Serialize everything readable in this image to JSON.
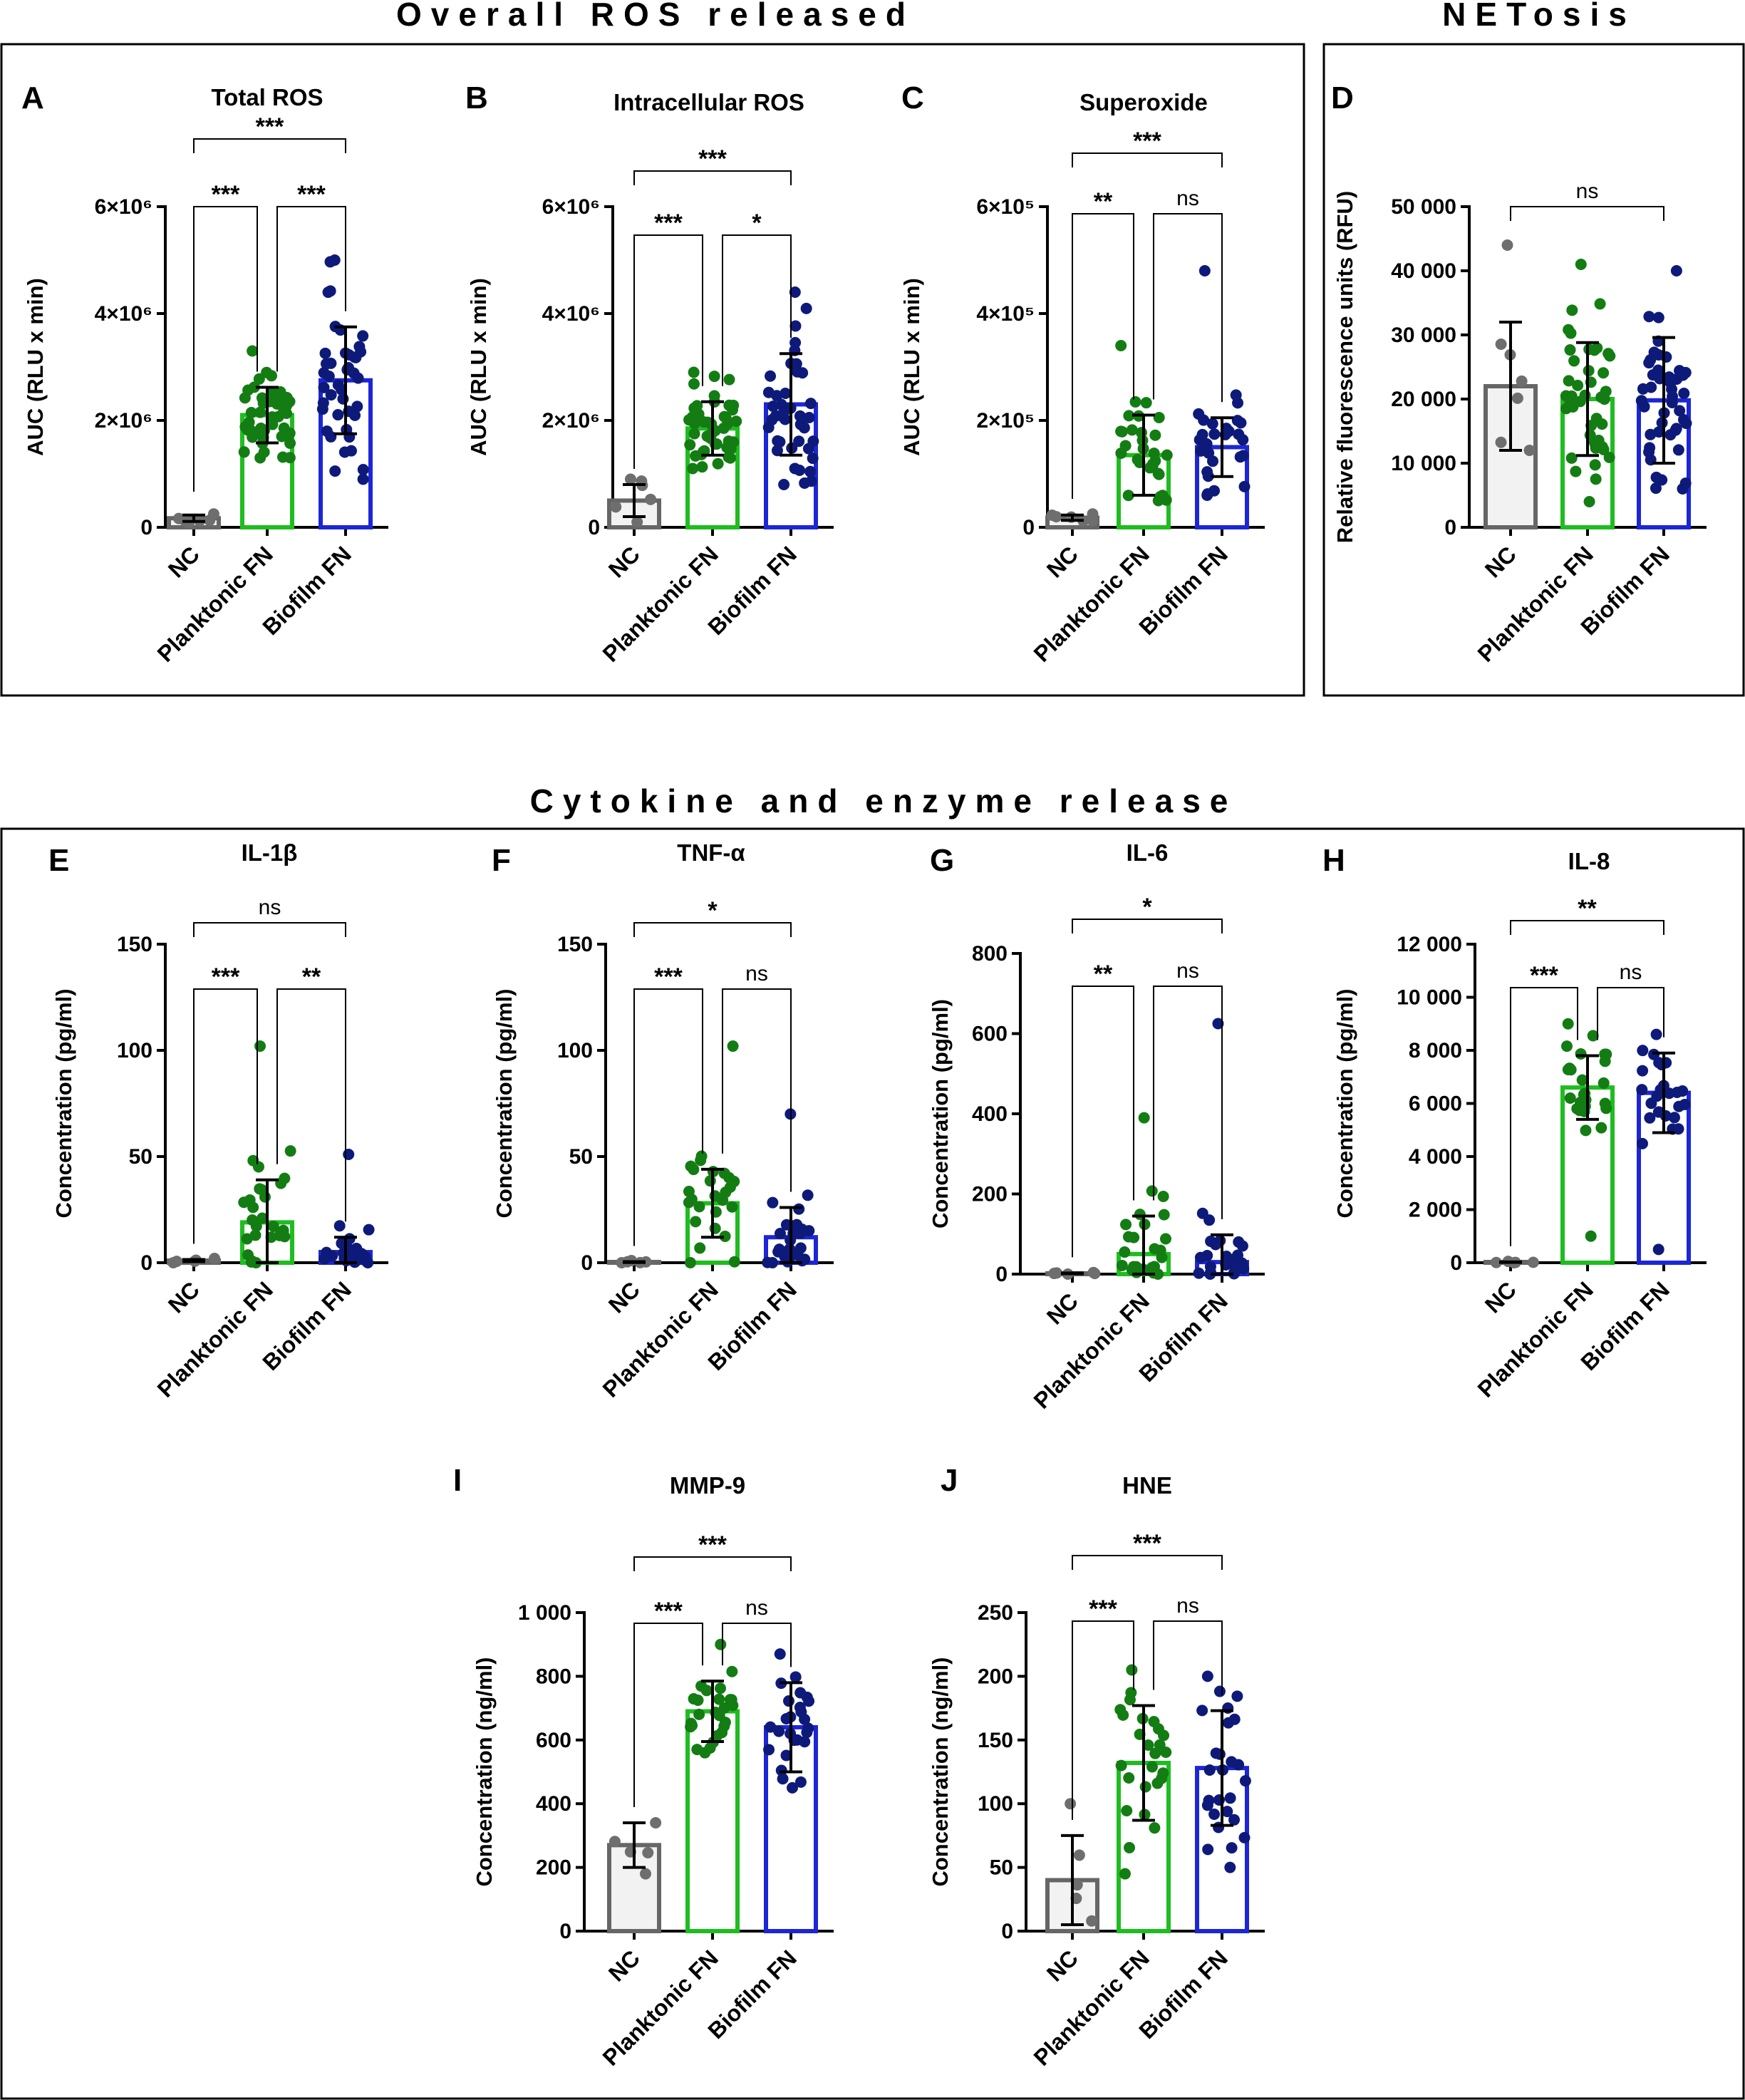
{
  "sections": [
    {
      "title": "Overall ROS released"
    },
    {
      "title": "NETosis"
    },
    {
      "title": "Cytokine and enzyme release"
    }
  ],
  "colors": {
    "nc_bar": "#f2f2f2",
    "nc_edge": "#666666",
    "nc_dot": "#6e6e6e",
    "plank_edge": "#1fbd1f",
    "plank_dot": "#137d13",
    "bio_edge": "#1c26d6",
    "bio_dot": "#0e1a7a"
  },
  "chart_data": [
    {
      "id": "A",
      "type": "bar",
      "title": "Total ROS",
      "ylabel": "AUC (RLU x min)",
      "categories": [
        "NC",
        "Planktonic FN",
        "Biofilm FN"
      ],
      "ylim": [
        0,
        6000000
      ],
      "yticks": [
        {
          "v": 0,
          "t": "0"
        },
        {
          "v": 2000000,
          "t": "2×10⁶"
        },
        {
          "v": 4000000,
          "t": "4×10⁶"
        },
        {
          "v": 6000000,
          "t": "6×10⁶"
        }
      ],
      "means": [
        170000,
        2100000,
        2750000
      ],
      "sd": [
        60000,
        520000,
        1000000
      ],
      "n": [
        6,
        45,
        42
      ],
      "spread": [
        [
          80000,
          250000
        ],
        [
          1300000,
          3300000
        ],
        [
          900000,
          5000000
        ]
      ],
      "significance": [
        {
          "a": 0,
          "b": 2,
          "label": "***"
        },
        {
          "a": 0,
          "b": 1,
          "label": "***"
        },
        {
          "a": 1,
          "b": 2,
          "label": "***"
        }
      ]
    },
    {
      "id": "B",
      "type": "bar",
      "title": "Intracellular ROS",
      "ylabel": "AUC (RLU x min)",
      "categories": [
        "NC",
        "Planktonic FN",
        "Biofilm FN"
      ],
      "ylim": [
        0,
        6000000
      ],
      "yticks": [
        {
          "v": 0,
          "t": "0"
        },
        {
          "v": 2000000,
          "t": "2×10⁶"
        },
        {
          "v": 4000000,
          "t": "4×10⁶"
        },
        {
          "v": 6000000,
          "t": "6×10⁶"
        }
      ],
      "means": [
        500000,
        1850000,
        2300000
      ],
      "sd": [
        300000,
        500000,
        950000
      ],
      "n": [
        6,
        45,
        42
      ],
      "spread": [
        [
          100000,
          900000
        ],
        [
          1100000,
          2900000
        ],
        [
          800000,
          4400000
        ]
      ],
      "significance": [
        {
          "a": 0,
          "b": 2,
          "label": "***"
        },
        {
          "a": 0,
          "b": 1,
          "label": "***"
        },
        {
          "a": 1,
          "b": 2,
          "label": "*"
        }
      ]
    },
    {
      "id": "C",
      "type": "bar",
      "title": "Superoxide",
      "ylabel": "AUC (RLU x min)",
      "categories": [
        "NC",
        "Planktonic FN",
        "Biofilm FN"
      ],
      "ylim": [
        0,
        600000
      ],
      "yticks": [
        {
          "v": 0,
          "t": "0"
        },
        {
          "v": 200000,
          "t": "2×10⁵"
        },
        {
          "v": 400000,
          "t": "4×10⁵"
        },
        {
          "v": 600000,
          "t": "6×10⁵"
        }
      ],
      "means": [
        18000,
        135000,
        150000
      ],
      "sd": [
        5000,
        75000,
        55000
      ],
      "n": [
        6,
        30,
        30
      ],
      "spread": [
        [
          12000,
          25000
        ],
        [
          50000,
          340000
        ],
        [
          60000,
          480000
        ]
      ],
      "significance": [
        {
          "a": 0,
          "b": 2,
          "label": "***"
        },
        {
          "a": 0,
          "b": 1,
          "label": "**"
        },
        {
          "a": 1,
          "b": 2,
          "label": "ns"
        }
      ]
    },
    {
      "id": "D",
      "type": "bar",
      "title": "",
      "ylabel": "Relative fluorescence units (RFU)",
      "categories": [
        "NC",
        "Planktonic FN",
        "Biofilm FN"
      ],
      "ylim": [
        0,
        50000
      ],
      "yticks": [
        {
          "v": 0,
          "t": "0"
        },
        {
          "v": 10000,
          "t": "10 000"
        },
        {
          "v": 20000,
          "t": "20 000"
        },
        {
          "v": 30000,
          "t": "30 000"
        },
        {
          "v": 40000,
          "t": "40 000"
        },
        {
          "v": 50000,
          "t": "50 000"
        }
      ],
      "means": [
        22000,
        20000,
        19800
      ],
      "sd": [
        10000,
        8800,
        9800
      ],
      "n": [
        7,
        45,
        45
      ],
      "spread": [
        [
          12000,
          44000
        ],
        [
          4000,
          41000
        ],
        [
          6000,
          40000
        ]
      ],
      "significance": [
        {
          "a": 0,
          "b": 2,
          "label": "ns"
        }
      ]
    },
    {
      "id": "E",
      "type": "bar",
      "title": "IL-1β",
      "ylabel": "Concentration (pg/ml)",
      "categories": [
        "NC",
        "Planktonic FN",
        "Biofilm FN"
      ],
      "ylim": [
        0,
        150
      ],
      "yticks": [
        {
          "v": 0,
          "t": "0"
        },
        {
          "v": 50,
          "t": "50"
        },
        {
          "v": 100,
          "t": "100"
        },
        {
          "v": 150,
          "t": "150"
        }
      ],
      "means": [
        1,
        19,
        5
      ],
      "sd": [
        0.5,
        20,
        7
      ],
      "n": [
        5,
        26,
        26
      ],
      "spread": [
        [
          0,
          2
        ],
        [
          0,
          102
        ],
        [
          0,
          51
        ]
      ],
      "significance": [
        {
          "a": 0,
          "b": 2,
          "label": "ns"
        },
        {
          "a": 0,
          "b": 1,
          "label": "***"
        },
        {
          "a": 1,
          "b": 2,
          "label": "**"
        }
      ]
    },
    {
      "id": "F",
      "type": "bar",
      "title": "TNF-α",
      "ylabel": "Concentration (pg/ml)",
      "categories": [
        "NC",
        "Planktonic FN",
        "Biofilm FN"
      ],
      "ylim": [
        0,
        150
      ],
      "yticks": [
        {
          "v": 0,
          "t": "0"
        },
        {
          "v": 50,
          "t": "50"
        },
        {
          "v": 100,
          "t": "100"
        },
        {
          "v": 150,
          "t": "150"
        }
      ],
      "means": [
        0.3,
        28,
        12
      ],
      "sd": [
        0.2,
        16,
        14
      ],
      "n": [
        5,
        26,
        26
      ],
      "spread": [
        [
          0,
          1
        ],
        [
          0,
          102
        ],
        [
          0,
          70
        ]
      ],
      "significance": [
        {
          "a": 0,
          "b": 2,
          "label": "*"
        },
        {
          "a": 0,
          "b": 1,
          "label": "***"
        },
        {
          "a": 1,
          "b": 2,
          "label": "ns"
        }
      ]
    },
    {
      "id": "G",
      "type": "bar",
      "title": "IL-6",
      "ylabel": "Concentration (pg/ml)",
      "categories": [
        "NC",
        "Planktonic FN",
        "Biofilm FN"
      ],
      "ylim": [
        0,
        800
      ],
      "yticks": [
        {
          "v": 0,
          "t": "0"
        },
        {
          "v": 200,
          "t": "200"
        },
        {
          "v": 400,
          "t": "400"
        },
        {
          "v": 600,
          "t": "600"
        },
        {
          "v": 800,
          "t": "800"
        }
      ],
      "means": [
        2,
        50,
        30
      ],
      "sd": [
        1,
        95,
        68
      ],
      "n": [
        5,
        26,
        26
      ],
      "spread": [
        [
          0,
          4
        ],
        [
          0,
          390
        ],
        [
          0,
          625
        ]
      ],
      "significance": [
        {
          "a": 0,
          "b": 2,
          "label": "*"
        },
        {
          "a": 0,
          "b": 1,
          "label": "**"
        },
        {
          "a": 1,
          "b": 2,
          "label": "ns"
        }
      ]
    },
    {
      "id": "H",
      "type": "bar",
      "title": "IL-8",
      "ylabel": "Concentration (pg/ml)",
      "categories": [
        "NC",
        "Planktonic FN",
        "Biofilm FN"
      ],
      "ylim": [
        0,
        12000
      ],
      "yticks": [
        {
          "v": 0,
          "t": "0"
        },
        {
          "v": 2000,
          "t": "2 000"
        },
        {
          "v": 4000,
          "t": "4 000"
        },
        {
          "v": 6000,
          "t": "6 000"
        },
        {
          "v": 8000,
          "t": "8 000"
        },
        {
          "v": 10000,
          "t": "10 000"
        },
        {
          "v": 12000,
          "t": "12 000"
        }
      ],
      "means": [
        20,
        6600,
        6400
      ],
      "sd": [
        10,
        1200,
        1500
      ],
      "n": [
        5,
        26,
        26
      ],
      "spread": [
        [
          0,
          50
        ],
        [
          1000,
          9000
        ],
        [
          500,
          8600
        ]
      ],
      "significance": [
        {
          "a": 0,
          "b": 2,
          "label": "**"
        },
        {
          "a": 0,
          "b": 1,
          "label": "***"
        },
        {
          "a": 1,
          "b": 2,
          "label": "ns"
        }
      ]
    },
    {
      "id": "I",
      "type": "bar",
      "title": "MMP-9",
      "ylabel": "Concentration (ng/ml)",
      "categories": [
        "NC",
        "Planktonic FN",
        "Biofilm FN"
      ],
      "ylim": [
        0,
        1000
      ],
      "yticks": [
        {
          "v": 0,
          "t": "0"
        },
        {
          "v": 200,
          "t": "200"
        },
        {
          "v": 400,
          "t": "400"
        },
        {
          "v": 600,
          "t": "600"
        },
        {
          "v": 800,
          "t": "800"
        },
        {
          "v": 1000,
          "t": "1 000"
        }
      ],
      "means": [
        270,
        690,
        640
      ],
      "sd": [
        70,
        95,
        140
      ],
      "n": [
        5,
        26,
        26
      ],
      "spread": [
        [
          180,
          340
        ],
        [
          560,
          900
        ],
        [
          450,
          870
        ]
      ],
      "significance": [
        {
          "a": 0,
          "b": 2,
          "label": "***"
        },
        {
          "a": 0,
          "b": 1,
          "label": "***"
        },
        {
          "a": 1,
          "b": 2,
          "label": "ns"
        }
      ]
    },
    {
      "id": "J",
      "type": "bar",
      "title": "HNE",
      "ylabel": "Concentration (ng/ml)",
      "categories": [
        "NC",
        "Planktonic FN",
        "Biofilm FN"
      ],
      "ylim": [
        0,
        250
      ],
      "yticks": [
        {
          "v": 0,
          "t": "0"
        },
        {
          "v": 50,
          "t": "50"
        },
        {
          "v": 100,
          "t": "100"
        },
        {
          "v": 150,
          "t": "150"
        },
        {
          "v": 200,
          "t": "200"
        },
        {
          "v": 250,
          "t": "250"
        }
      ],
      "means": [
        40,
        132,
        128
      ],
      "sd": [
        35,
        45,
        45
      ],
      "n": [
        5,
        26,
        26
      ],
      "spread": [
        [
          8,
          100
        ],
        [
          45,
          205
        ],
        [
          50,
          200
        ]
      ],
      "significance": [
        {
          "a": 0,
          "b": 2,
          "label": "***"
        },
        {
          "a": 0,
          "b": 1,
          "label": "***"
        },
        {
          "a": 1,
          "b": 2,
          "label": "ns"
        }
      ]
    }
  ]
}
